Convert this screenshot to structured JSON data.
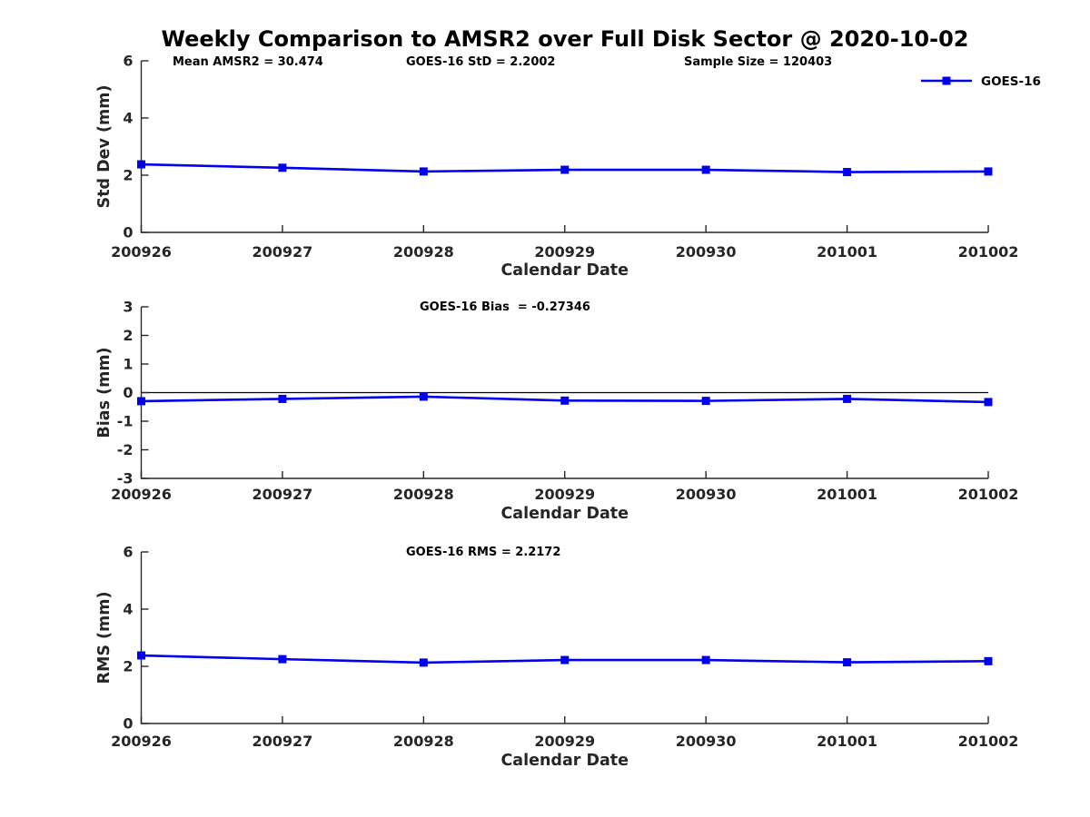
{
  "figure": {
    "title": "Weekly Comparison to AMSR2 over Full Disk Sector @ 2020-10-02"
  },
  "colors": {
    "series_blue": "#0000EE",
    "axis_gray": "#262626",
    "text_black": "#000000",
    "background": "#ffffff"
  },
  "chart_data": [
    {
      "type": "line",
      "name": "std-dev-vs-date",
      "ylabel": "Std Dev (mm)",
      "xlabel": "Calendar Date",
      "categories": [
        "200926",
        "200927",
        "200928",
        "200929",
        "200930",
        "201001",
        "201002"
      ],
      "ylim": [
        0,
        6
      ],
      "yticks": [
        0,
        2,
        4,
        6
      ],
      "grid": false,
      "annotations": [
        "Mean AMSR2 = 30.474",
        "GOES-16 StD = 2.2002",
        "Sample Size = 120403"
      ],
      "legend": {
        "position": "top-right",
        "entries": [
          "GOES-16"
        ]
      },
      "series": [
        {
          "name": "GOES-16",
          "color": "#0000EE",
          "marker": "square",
          "values": [
            2.38,
            2.26,
            2.13,
            2.19,
            2.19,
            2.11,
            2.13
          ]
        }
      ]
    },
    {
      "type": "line",
      "name": "bias-vs-date",
      "ylabel": "Bias (mm)",
      "xlabel": "Calendar Date",
      "categories": [
        "200926",
        "200927",
        "200928",
        "200929",
        "200930",
        "201001",
        "201002"
      ],
      "ylim": [
        -3,
        3
      ],
      "yticks": [
        -3,
        -2,
        -1,
        0,
        1,
        2,
        3
      ],
      "grid": false,
      "zero_line": true,
      "annotations": [
        "GOES-16 Bias  = -0.27346"
      ],
      "series": [
        {
          "name": "GOES-16",
          "color": "#0000EE",
          "marker": "square",
          "values": [
            -0.3,
            -0.22,
            -0.14,
            -0.28,
            -0.29,
            -0.22,
            -0.33
          ]
        }
      ]
    },
    {
      "type": "line",
      "name": "rms-vs-date",
      "ylabel": "RMS (mm)",
      "xlabel": "Calendar Date",
      "categories": [
        "200926",
        "200927",
        "200928",
        "200929",
        "200930",
        "201001",
        "201002"
      ],
      "ylim": [
        0,
        6
      ],
      "yticks": [
        0,
        2,
        4,
        6
      ],
      "grid": false,
      "annotations": [
        "GOES-16 RMS = 2.2172"
      ],
      "series": [
        {
          "name": "GOES-16",
          "color": "#0000EE",
          "marker": "square",
          "values": [
            2.38,
            2.25,
            2.13,
            2.22,
            2.22,
            2.14,
            2.18
          ]
        }
      ]
    }
  ]
}
